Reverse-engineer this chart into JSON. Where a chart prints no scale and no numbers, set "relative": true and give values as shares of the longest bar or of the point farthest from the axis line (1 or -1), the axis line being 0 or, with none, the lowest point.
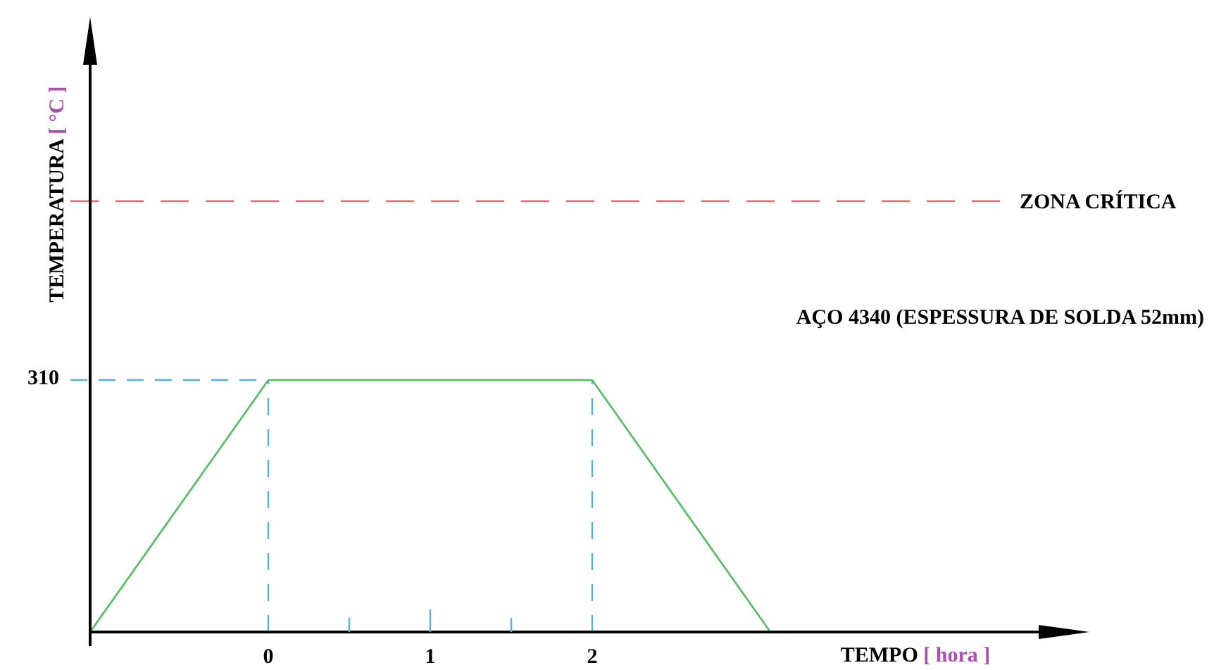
{
  "chart_data": {
    "type": "line",
    "xlabel": "TEMPO [ hora ]",
    "ylabel": "TEMPERATURA [ °C ]",
    "relative": true,
    "x": [
      -1.1,
      0,
      2,
      3.1
    ],
    "series": [
      {
        "color": "#4cc25a",
        "values": [
          0,
          1,
          1,
          0
        ]
      }
    ],
    "xlim": [
      -1.1,
      5
    ],
    "xticks": [
      0,
      {
        "value": 0.5,
        "label": null
      },
      1,
      {
        "value": 1.5,
        "label": null
      },
      2
    ],
    "marker": "none",
    "line_style": "solid",
    "ref_lines": [
      {
        "axis": "y",
        "value": 1.71,
        "label": "ZONA CRÍTICA",
        "color": "#f06a6a",
        "line_style": "dashed"
      },
      {
        "axis": "y",
        "value": 1,
        "label": null,
        "color": "#4fb3e8",
        "line_style": "dashed"
      },
      {
        "axis": "x",
        "value": 0,
        "label": null,
        "color": "#4fb3e8",
        "line_style": "dashed"
      },
      {
        "axis": "x",
        "value": 2,
        "label": null,
        "color": "#4fb3e8",
        "line_style": "dashed"
      }
    ],
    "annotations": [
      "310",
      "AÇO 4340 (ESPESSURA DE SOLDA 52mm)"
    ]
  }
}
